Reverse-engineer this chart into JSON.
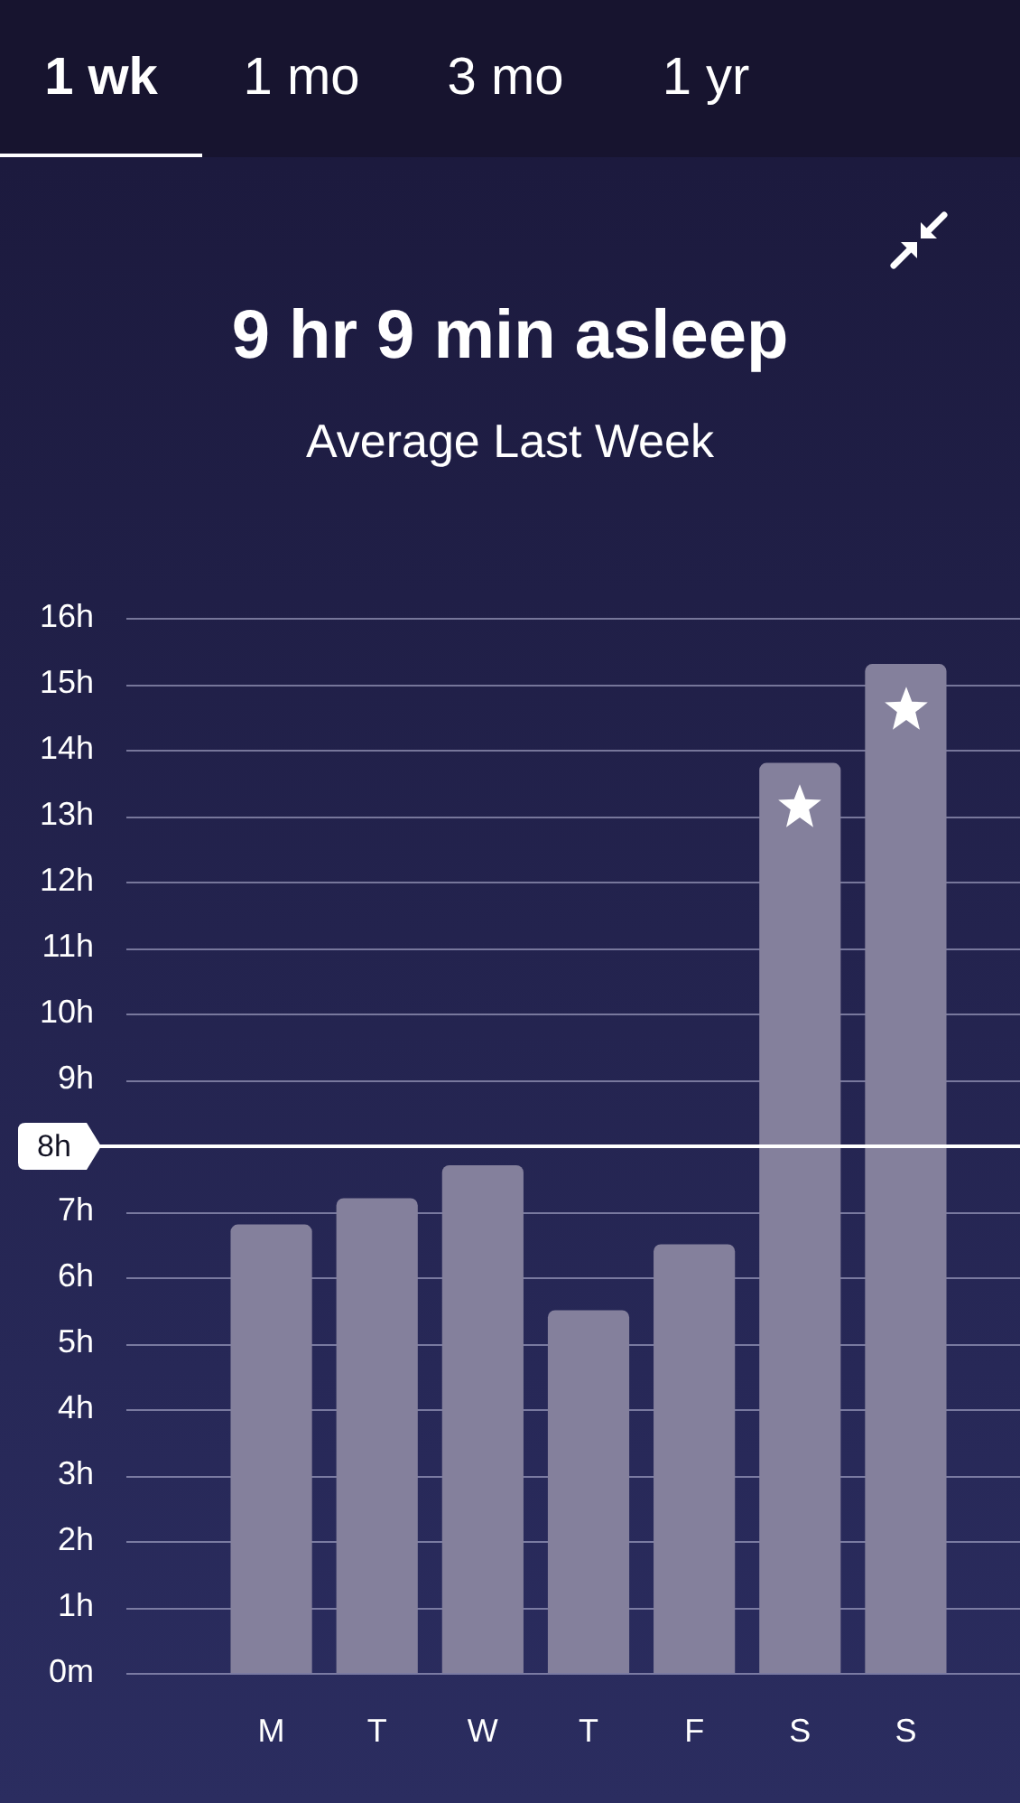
{
  "chart_data": {
    "type": "bar",
    "title": "9 hr 9 min asleep",
    "subtitle": "Average Last Week",
    "annotations": [
      "1 wk",
      "1 mo",
      "3 mo",
      "1 yr"
    ],
    "categories": [
      "M",
      "T",
      "W",
      "T",
      "F",
      "S",
      "S"
    ],
    "values": [
      6.8,
      7.2,
      7.7,
      5.5,
      6.5,
      13.8,
      15.3
    ],
    "color": "#84809c",
    "ylim": [
      0,
      16
    ],
    "yticks": [
      {
        "value": 0,
        "label": "0m"
      },
      {
        "value": 1,
        "label": "1h"
      },
      {
        "value": 2,
        "label": "2h"
      },
      {
        "value": 3,
        "label": "3h"
      },
      {
        "value": 4,
        "label": "4h"
      },
      {
        "value": 5,
        "label": "5h"
      },
      {
        "value": 6,
        "label": "6h"
      },
      {
        "value": 7,
        "label": "7h"
      },
      {
        "value": 9,
        "label": "9h"
      },
      {
        "value": 10,
        "label": "10h"
      },
      {
        "value": 11,
        "label": "11h"
      },
      {
        "value": 12,
        "label": "12h"
      },
      {
        "value": 13,
        "label": "13h"
      },
      {
        "value": 14,
        "label": "14h"
      },
      {
        "value": 15,
        "label": "15h"
      },
      {
        "value": 16,
        "label": "16h"
      }
    ],
    "grid": "y",
    "ref_lines": [
      {
        "axis": "y",
        "value": 8,
        "label": "8h",
        "color": "#ffffff"
      }
    ]
  }
}
